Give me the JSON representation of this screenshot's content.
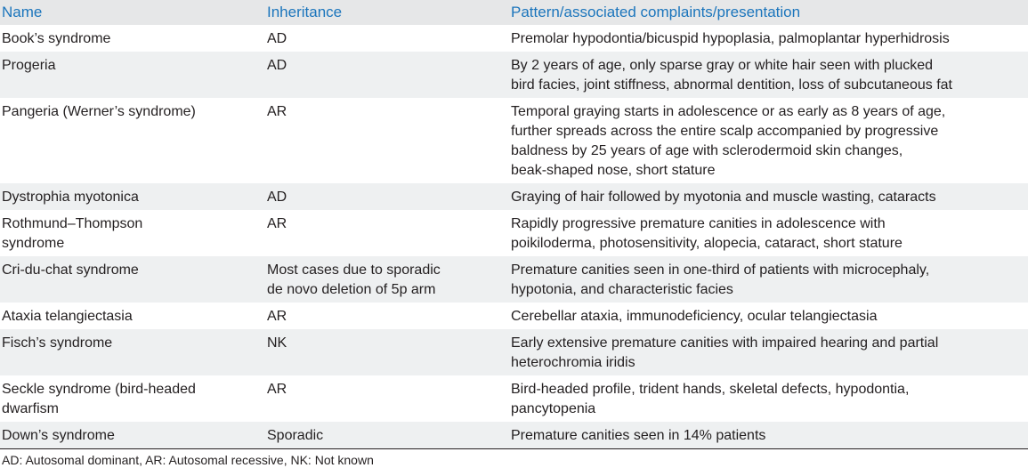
{
  "table": {
    "headers": [
      "Name",
      "Inheritance",
      "Pattern/associated complaints/presentation"
    ],
    "rows": [
      {
        "name": "Book’s syndrome",
        "inheritance": "AD",
        "pattern": "Premolar hypodontia/bicuspid hypoplasia, palmoplantar hyperhidrosis"
      },
      {
        "name": "Progeria",
        "inheritance": "AD",
        "pattern": "By 2 years of age, only sparse gray or white hair seen with plucked\nbird facies, joint stiffness, abnormal dentition, loss of subcutaneous fat"
      },
      {
        "name": "Pangeria (Werner’s syndrome)",
        "inheritance": "AR",
        "pattern": "Temporal graying starts in adolescence or as early as 8 years of age,\nfurther spreads across the entire scalp accompanied by progressive\nbaldness by 25 years of age with sclerodermoid skin changes,\nbeak-shaped nose, short stature"
      },
      {
        "name": "Dystrophia myotonica",
        "inheritance": "AD",
        "pattern": "Graying of hair followed by myotonia and muscle wasting, cataracts"
      },
      {
        "name": "Rothmund–Thompson\nsyndrome",
        "inheritance": "AR",
        "pattern": "Rapidly progressive premature canities in adolescence with\npoikiloderma, photosensitivity, alopecia, cataract, short stature"
      },
      {
        "name": "Cri-du-chat syndrome",
        "inheritance": "Most cases due to sporadic\nde novo deletion of 5p arm",
        "pattern": "Premature canities seen in one-third of patients with microcephaly,\nhypotonia, and characteristic facies"
      },
      {
        "name": "Ataxia telangiectasia",
        "inheritance": "AR",
        "pattern": "Cerebellar ataxia, immunodeficiency, ocular telangiectasia"
      },
      {
        "name": "Fisch’s syndrome",
        "inheritance": "NK",
        "pattern": "Early extensive premature canities with impaired hearing and partial\nheterochromia iridis"
      },
      {
        "name": "Seckle syndrome (bird-headed\ndwarfism",
        "inheritance": "AR",
        "pattern": "Bird-headed profile, trident hands, skeletal defects, hypodontia,\npancytopenia"
      },
      {
        "name": "Down’s syndrome",
        "inheritance": "Sporadic",
        "pattern": "Premature canities seen in 14% patients"
      }
    ]
  },
  "footnote": "AD: Autosomal dominant, AR: Autosomal recessive, NK: Not known",
  "colors": {
    "header_text": "#1b75bc",
    "header_bg": "#e6e7e8",
    "alt_row_bg": "#eef0f1",
    "body_text": "#231f20"
  }
}
